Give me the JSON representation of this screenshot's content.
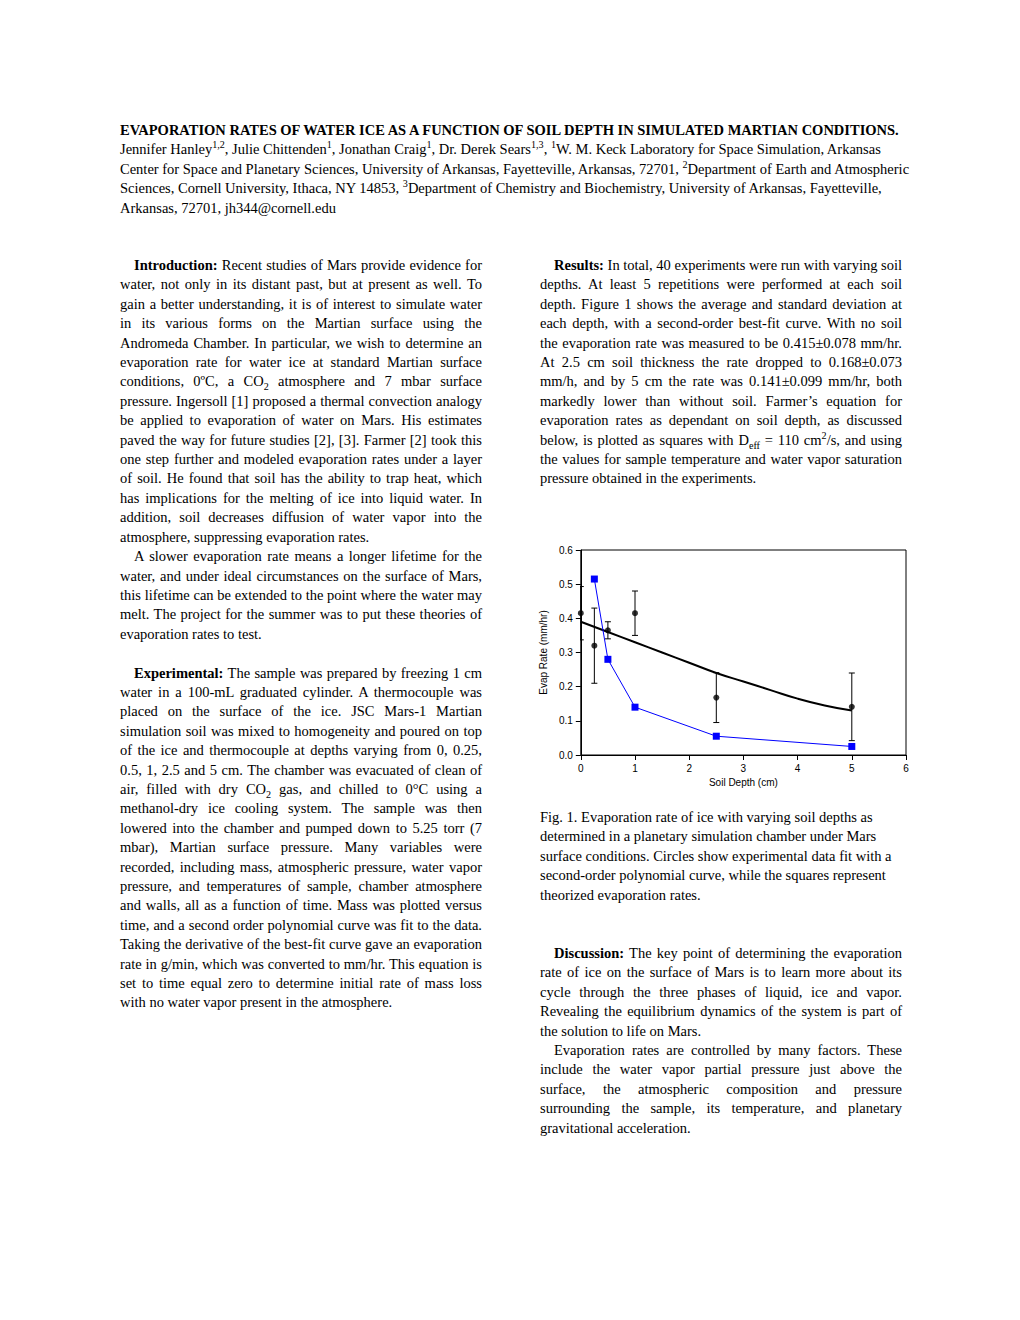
{
  "header": {
    "title": "EVAPORATION RATES OF WATER ICE AS A FUNCTION OF SOIL DEPTH IN SIMULATED MARTIAN CONDITIONS.",
    "byline": [
      " Jennifer Hanley",
      {
        "sup": "1,2"
      },
      ", Julie Chittenden",
      {
        "sup": "1"
      },
      ", Jonathan Craig",
      {
        "sup": "1"
      },
      ", Dr. Derek Sears",
      {
        "sup": "1,3"
      },
      ", ",
      {
        "sup": "1"
      },
      "W. M. Keck Laboratory for Space Simulation, Arkansas Center for Space and Planetary Sciences, University of Arkansas, Fayetteville, Arkansas, 72701, ",
      {
        "sup": "2"
      },
      "Department of Earth and Atmospheric Sciences, Cornell University, Ithaca, NY 14853, ",
      {
        "sup": "3"
      },
      "Department of Chemistry and Biochemistry, University of Arkansas, Fayetteville, Arkansas, 72701, jh344@cornell.edu"
    ]
  },
  "introduction": {
    "heading": "Introduction:",
    "paragraphs": [
      [
        " Recent studies of Mars provide evidence for water, not only in its distant past, but at present as well. To gain a better understanding, it is of interest to simulate water in its various forms on the Martian surface using the Andromeda Chamber. In particular, we wish to determine an evaporation rate for water ice at standard Martian surface conditions, 0ºC, a CO",
        {
          "sub": "2"
        },
        " atmosphere and 7 mbar surface pressure. Ingersoll [1] proposed a thermal convection analogy be applied to evaporation of water on Mars. His estimates paved the way for future studies [2], [3]. Farmer [2] took this one step further and modeled evaporation rates under a layer of soil. He found that soil has the ability to trap heat, which has implications for the melting of ice into liquid water. In addition, soil decreases diffusion of water vapor into the atmosphere, suppressing evaporation rates."
      ],
      [
        "A slower evaporation rate means a longer lifetime for the water, and under ideal circumstances on the surface of Mars, this lifetime can be extended to the point where the water may melt. The project for the summer was to put these theories of evaporation rates to test."
      ]
    ]
  },
  "experimental": {
    "heading": "Experimental:",
    "paragraphs": [
      [
        " The sample was prepared by freezing 1 cm water in a 100-mL graduated cylinder. A thermocouple was placed on the surface of the ice. JSC Mars-1 Martian simulation soil was mixed to homogeneity and poured on top of the ice and thermocouple at depths varying from 0, 0.25, 0.5, 1, 2.5 and 5 cm. The chamber was evacuated of clean of air, filled with dry CO",
        {
          "sub": "2"
        },
        " gas, and chilled to 0°C using a methanol-dry ice cooling system. The sample was then lowered into the chamber and pumped down to 5.25 torr (7 mbar), Martian surface pressure. Many variables were recorded, including mass, atmospheric pressure, water vapor pressure, and temperatures of sample, chamber atmosphere and walls, all as a function of time. Mass was plotted versus time, and a second order polynomial curve was fit to the data. Taking the derivative of the best-fit curve gave an evaporation rate in g/min, which was converted to mm/hr. This equation is set to time equal zero to determine initial rate of mass loss with no water vapor present in the atmosphere."
      ]
    ]
  },
  "results": {
    "heading": "Results:",
    "paragraphs": [
      [
        " In total, 40 experiments were run with varying soil depths. At least 5 repetitions were performed at each soil depth.  Figure 1 shows the average and standard deviation at each depth, with a second-order best-fit curve. With no soil the evaporation rate was measured to be 0.415±0.078 mm/hr. At 2.5 cm soil thickness the rate dropped to 0.168±0.073 mm/h, and by 5 cm the rate was 0.141±0.099 mm/hr, both markedly lower than without soil.  Farmer’s equation for evaporation rates as dependant on soil depth, as discussed below, is plotted as squares with D",
        {
          "sub": "eff"
        },
        " = 110 cm",
        {
          "sup": "2"
        },
        "/s, and using the values for sample temperature and water vapor saturation pressure obtained in the experiments."
      ]
    ]
  },
  "figure": {
    "caption": "Fig. 1. Evaporation rate of ice with varying soil depths as determined in a planetary simulation chamber under Mars surface conditions. Circles show experimental data fit with a second-order polynomial curve, while the squares represent theorized evaporation rates."
  },
  "discussion": {
    "heading": "Discussion:",
    "paragraphs": [
      [
        " The key point of determining the evaporation rate of ice on the surface of Mars is to learn more about its cycle through the three phases of liquid, ice and vapor. Revealing the equilibrium dynamics of the system is part of the solution to life on Mars."
      ],
      [
        "Evaporation rates are controlled by many factors. These include the water vapor partial pressure just above the surface, the atmospheric composition and pressure surrounding the sample, its temperature, and planetary gravitational acceleration."
      ]
    ]
  },
  "chart_data": {
    "type": "scatter",
    "x_label": "Soil Depth (cm)",
    "y_label": "Evap Rate (mm/hr)",
    "xlim": [
      0,
      6
    ],
    "xticks": [
      0,
      1,
      2,
      3,
      4,
      5,
      6
    ],
    "ylim": [
      0,
      0.6
    ],
    "yticks": [
      {
        "value": 0,
        "label": "0.0"
      },
      0.1,
      0.2,
      0.3,
      0.4,
      0.5,
      0.6
    ],
    "grid": false,
    "series": [
      {
        "type": "scatter",
        "marker": "circle",
        "color": "#000000",
        "x": [
          0,
          0.25,
          0.5,
          1,
          2.5,
          5
        ],
        "values": [
          0.415,
          0.32,
          0.365,
          0.415,
          0.168,
          0.141
        ],
        "errors": [
          0.078,
          0.11,
          0.025,
          0.065,
          0.073,
          0.099
        ]
      },
      {
        "type": "line",
        "marker": "none",
        "color": "#000000",
        "line_style": "solid",
        "x": [
          0,
          0.5,
          1,
          1.5,
          2,
          2.5,
          3,
          3.5,
          4,
          4.5,
          5
        ],
        "values": [
          0.39,
          0.36,
          0.33,
          0.3,
          0.27,
          0.24,
          0.215,
          0.19,
          0.165,
          0.145,
          0.13
        ]
      },
      {
        "type": "line",
        "marker": "square",
        "color": "#0000ff",
        "line_style": "solid",
        "x": [
          0.25,
          0.5,
          1,
          2.5,
          5
        ],
        "values": [
          0.515,
          0.28,
          0.14,
          0.055,
          0.025
        ]
      }
    ]
  }
}
